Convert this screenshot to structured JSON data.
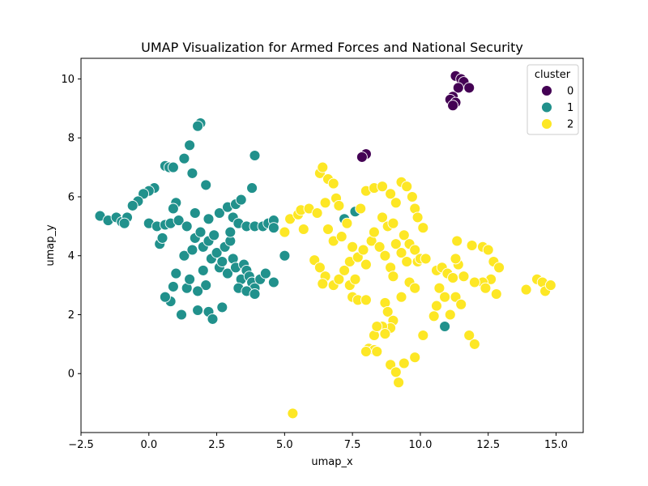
{
  "chart_data": {
    "type": "scatter",
    "title": "UMAP Visualization for Armed Forces and National Security",
    "xlabel": "umap_x",
    "ylabel": "umap_y",
    "xlim": [
      -2.5,
      16.0
    ],
    "ylim": [
      -2.0,
      10.7
    ],
    "xticks": [
      -2.5,
      0.0,
      2.5,
      5.0,
      7.5,
      10.0,
      12.5,
      15.0
    ],
    "xtick_labels": [
      "−2.5",
      "0.0",
      "2.5",
      "5.0",
      "7.5",
      "10.0",
      "12.5",
      "15.0"
    ],
    "yticks": [
      0,
      2,
      4,
      6,
      8,
      10
    ],
    "ytick_labels": [
      "0",
      "2",
      "4",
      "6",
      "8",
      "10"
    ],
    "grid": false,
    "legend": {
      "title": "cluster",
      "placement": "top-right"
    },
    "series": [
      {
        "name": "0",
        "color": "#440154",
        "points": [
          [
            11.3,
            10.1
          ],
          [
            11.5,
            10.0
          ],
          [
            11.6,
            9.9
          ],
          [
            11.8,
            9.7
          ],
          [
            11.4,
            9.7
          ],
          [
            11.2,
            9.4
          ],
          [
            11.1,
            9.3
          ],
          [
            11.3,
            9.2
          ],
          [
            11.2,
            9.1
          ],
          [
            7.9,
            7.4
          ],
          [
            8.0,
            7.45
          ],
          [
            7.85,
            7.35
          ]
        ]
      },
      {
        "name": "1",
        "color": "#21918c",
        "points": [
          [
            1.9,
            8.5
          ],
          [
            1.8,
            8.4
          ],
          [
            3.9,
            7.4
          ],
          [
            1.5,
            7.75
          ],
          [
            1.3,
            7.3
          ],
          [
            0.6,
            7.05
          ],
          [
            0.75,
            7.0
          ],
          [
            0.9,
            7.0
          ],
          [
            1.6,
            6.8
          ],
          [
            2.1,
            6.4
          ],
          [
            0.2,
            6.3
          ],
          [
            0.0,
            6.2
          ],
          [
            -0.2,
            6.1
          ],
          [
            -0.4,
            5.85
          ],
          [
            -0.6,
            5.7
          ],
          [
            -1.8,
            5.35
          ],
          [
            -1.5,
            5.2
          ],
          [
            -1.2,
            5.3
          ],
          [
            -1.0,
            5.15
          ],
          [
            -0.8,
            5.3
          ],
          [
            -0.9,
            5.1
          ],
          [
            0.0,
            5.1
          ],
          [
            0.3,
            5.0
          ],
          [
            0.6,
            5.05
          ],
          [
            0.8,
            5.1
          ],
          [
            1.1,
            5.2
          ],
          [
            1.4,
            5.0
          ],
          [
            1.0,
            5.8
          ],
          [
            0.9,
            5.6
          ],
          [
            1.7,
            5.45
          ],
          [
            2.2,
            5.25
          ],
          [
            2.6,
            5.45
          ],
          [
            2.9,
            5.65
          ],
          [
            3.2,
            5.75
          ],
          [
            3.4,
            5.9
          ],
          [
            3.8,
            6.3
          ],
          [
            3.1,
            5.3
          ],
          [
            3.3,
            5.1
          ],
          [
            3.6,
            5.0
          ],
          [
            3.9,
            5.0
          ],
          [
            4.2,
            5.0
          ],
          [
            4.4,
            5.1
          ],
          [
            4.6,
            5.2
          ],
          [
            0.4,
            4.4
          ],
          [
            0.5,
            4.6
          ],
          [
            1.3,
            4.0
          ],
          [
            1.6,
            4.2
          ],
          [
            1.7,
            4.6
          ],
          [
            1.9,
            4.8
          ],
          [
            2.0,
            4.3
          ],
          [
            2.2,
            4.5
          ],
          [
            2.3,
            3.9
          ],
          [
            2.4,
            4.7
          ],
          [
            2.5,
            4.1
          ],
          [
            2.6,
            3.6
          ],
          [
            2.7,
            3.8
          ],
          [
            2.8,
            4.3
          ],
          [
            2.9,
            3.4
          ],
          [
            3.0,
            4.5
          ],
          [
            3.1,
            3.9
          ],
          [
            3.2,
            3.6
          ],
          [
            3.4,
            3.2
          ],
          [
            3.5,
            3.7
          ],
          [
            3.6,
            3.5
          ],
          [
            3.7,
            3.3
          ],
          [
            3.8,
            3.1
          ],
          [
            3.9,
            2.9
          ],
          [
            4.1,
            3.2
          ],
          [
            4.3,
            3.4
          ],
          [
            4.6,
            3.1
          ],
          [
            3.3,
            2.9
          ],
          [
            3.6,
            2.8
          ],
          [
            3.9,
            2.7
          ],
          [
            2.1,
            3.0
          ],
          [
            1.8,
            2.8
          ],
          [
            2.2,
            2.1
          ],
          [
            2.35,
            1.85
          ],
          [
            2.7,
            2.25
          ],
          [
            1.8,
            2.15
          ],
          [
            1.4,
            2.9
          ],
          [
            0.8,
            2.45
          ],
          [
            0.6,
            2.6
          ],
          [
            0.9,
            2.95
          ],
          [
            1.2,
            2.0
          ],
          [
            5.0,
            4.0
          ],
          [
            7.2,
            5.25
          ],
          [
            7.6,
            5.5
          ],
          [
            10.9,
            1.6
          ],
          [
            4.6,
            4.95
          ],
          [
            3.0,
            4.8
          ],
          [
            1.0,
            3.4
          ],
          [
            2.0,
            3.5
          ],
          [
            1.5,
            3.2
          ]
        ]
      },
      {
        "name": "2",
        "color": "#fde725",
        "points": [
          [
            5.3,
            -1.35
          ],
          [
            5.2,
            5.25
          ],
          [
            5.5,
            5.4
          ],
          [
            5.0,
            4.8
          ],
          [
            5.7,
            4.9
          ],
          [
            5.6,
            5.55
          ],
          [
            5.9,
            5.6
          ],
          [
            6.2,
            5.45
          ],
          [
            6.5,
            5.8
          ],
          [
            6.3,
            6.8
          ],
          [
            6.4,
            7.0
          ],
          [
            6.6,
            6.6
          ],
          [
            6.8,
            6.45
          ],
          [
            6.9,
            5.95
          ],
          [
            7.0,
            5.7
          ],
          [
            6.6,
            4.9
          ],
          [
            6.8,
            4.5
          ],
          [
            7.1,
            4.65
          ],
          [
            7.3,
            5.1
          ],
          [
            6.1,
            3.85
          ],
          [
            6.3,
            3.6
          ],
          [
            6.5,
            3.3
          ],
          [
            6.4,
            3.05
          ],
          [
            6.8,
            3.0
          ],
          [
            7.0,
            3.2
          ],
          [
            7.2,
            3.5
          ],
          [
            7.4,
            3.8
          ],
          [
            7.5,
            4.3
          ],
          [
            7.7,
            3.95
          ],
          [
            7.9,
            4.2
          ],
          [
            8.0,
            3.7
          ],
          [
            8.2,
            4.5
          ],
          [
            8.3,
            4.8
          ],
          [
            8.5,
            4.3
          ],
          [
            8.7,
            4.0
          ],
          [
            8.9,
            3.6
          ],
          [
            9.0,
            3.3
          ],
          [
            9.1,
            4.4
          ],
          [
            9.3,
            4.1
          ],
          [
            9.4,
            4.7
          ],
          [
            9.5,
            3.8
          ],
          [
            9.6,
            4.4
          ],
          [
            9.8,
            4.2
          ],
          [
            9.9,
            3.8
          ],
          [
            10.1,
            4.95
          ],
          [
            10.0,
            3.9
          ],
          [
            7.8,
            5.6
          ],
          [
            8.0,
            6.2
          ],
          [
            8.3,
            6.3
          ],
          [
            8.6,
            6.35
          ],
          [
            8.9,
            6.1
          ],
          [
            9.1,
            5.8
          ],
          [
            9.3,
            6.5
          ],
          [
            9.5,
            6.35
          ],
          [
            9.7,
            6.0
          ],
          [
            9.8,
            5.6
          ],
          [
            9.9,
            5.3
          ],
          [
            8.6,
            5.3
          ],
          [
            8.8,
            5.0
          ],
          [
            9.0,
            5.1
          ],
          [
            7.5,
            2.6
          ],
          [
            7.7,
            2.5
          ],
          [
            8.0,
            2.5
          ],
          [
            7.4,
            3.0
          ],
          [
            7.6,
            3.2
          ],
          [
            8.7,
            2.4
          ],
          [
            8.8,
            2.1
          ],
          [
            9.0,
            1.8
          ],
          [
            8.9,
            1.55
          ],
          [
            8.6,
            1.6
          ],
          [
            8.3,
            1.3
          ],
          [
            8.4,
            1.6
          ],
          [
            8.7,
            1.35
          ],
          [
            8.1,
            0.85
          ],
          [
            8.3,
            0.8
          ],
          [
            8.0,
            0.75
          ],
          [
            8.4,
            0.75
          ],
          [
            8.9,
            0.3
          ],
          [
            9.1,
            0.05
          ],
          [
            9.2,
            -0.3
          ],
          [
            9.4,
            0.35
          ],
          [
            9.8,
            0.55
          ],
          [
            10.1,
            1.3
          ],
          [
            9.3,
            2.6
          ],
          [
            9.6,
            3.1
          ],
          [
            9.8,
            2.9
          ],
          [
            10.2,
            3.9
          ],
          [
            10.6,
            3.5
          ],
          [
            10.8,
            3.6
          ],
          [
            11.0,
            3.4
          ],
          [
            11.2,
            3.25
          ],
          [
            11.4,
            3.7
          ],
          [
            11.6,
            3.3
          ],
          [
            11.3,
            3.9
          ],
          [
            11.35,
            4.5
          ],
          [
            11.9,
            4.35
          ],
          [
            12.3,
            4.3
          ],
          [
            12.5,
            4.2
          ],
          [
            12.7,
            3.8
          ],
          [
            12.9,
            3.6
          ],
          [
            12.6,
            3.2
          ],
          [
            12.3,
            3.1
          ],
          [
            12.0,
            3.1
          ],
          [
            12.4,
            2.9
          ],
          [
            12.8,
            2.7
          ],
          [
            10.7,
            2.9
          ],
          [
            10.6,
            2.3
          ],
          [
            10.5,
            1.95
          ],
          [
            11.3,
            2.6
          ],
          [
            11.5,
            2.35
          ],
          [
            11.8,
            1.3
          ],
          [
            12.0,
            1.0
          ],
          [
            13.9,
            2.85
          ],
          [
            14.3,
            3.2
          ],
          [
            14.5,
            3.1
          ],
          [
            14.6,
            2.8
          ],
          [
            14.8,
            3.0
          ],
          [
            10.9,
            2.6
          ],
          [
            11.1,
            2.0
          ]
        ]
      }
    ]
  }
}
